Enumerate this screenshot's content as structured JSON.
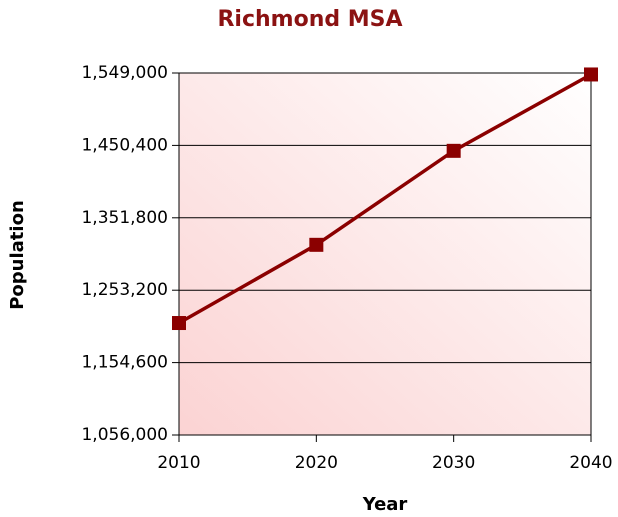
{
  "chart_data": {
    "type": "line",
    "title": "Richmond MSA",
    "x_label": "Year",
    "y_label": "Population",
    "x": [
      2010,
      2020,
      2030,
      2040
    ],
    "series": [
      {
        "name": "Population",
        "color": "#8b0000",
        "values": [
          1208500,
          1315000,
          1443000,
          1547000
        ]
      }
    ],
    "xlim": [
      2010,
      2040
    ],
    "xticks": [
      2010,
      2020,
      2030,
      2040
    ],
    "ylim": [
      1056000,
      1549000
    ],
    "yticks": [
      {
        "value": 1056000,
        "label": "1,056,000"
      },
      {
        "value": 1154600,
        "label": "1,154,600"
      },
      {
        "value": 1253200,
        "label": "1,253,200"
      },
      {
        "value": 1351800,
        "label": "1,351,800"
      },
      {
        "value": 1450400,
        "label": "1,450,400"
      },
      {
        "value": 1549000,
        "label": "1,549,000"
      }
    ],
    "grid": true
  }
}
